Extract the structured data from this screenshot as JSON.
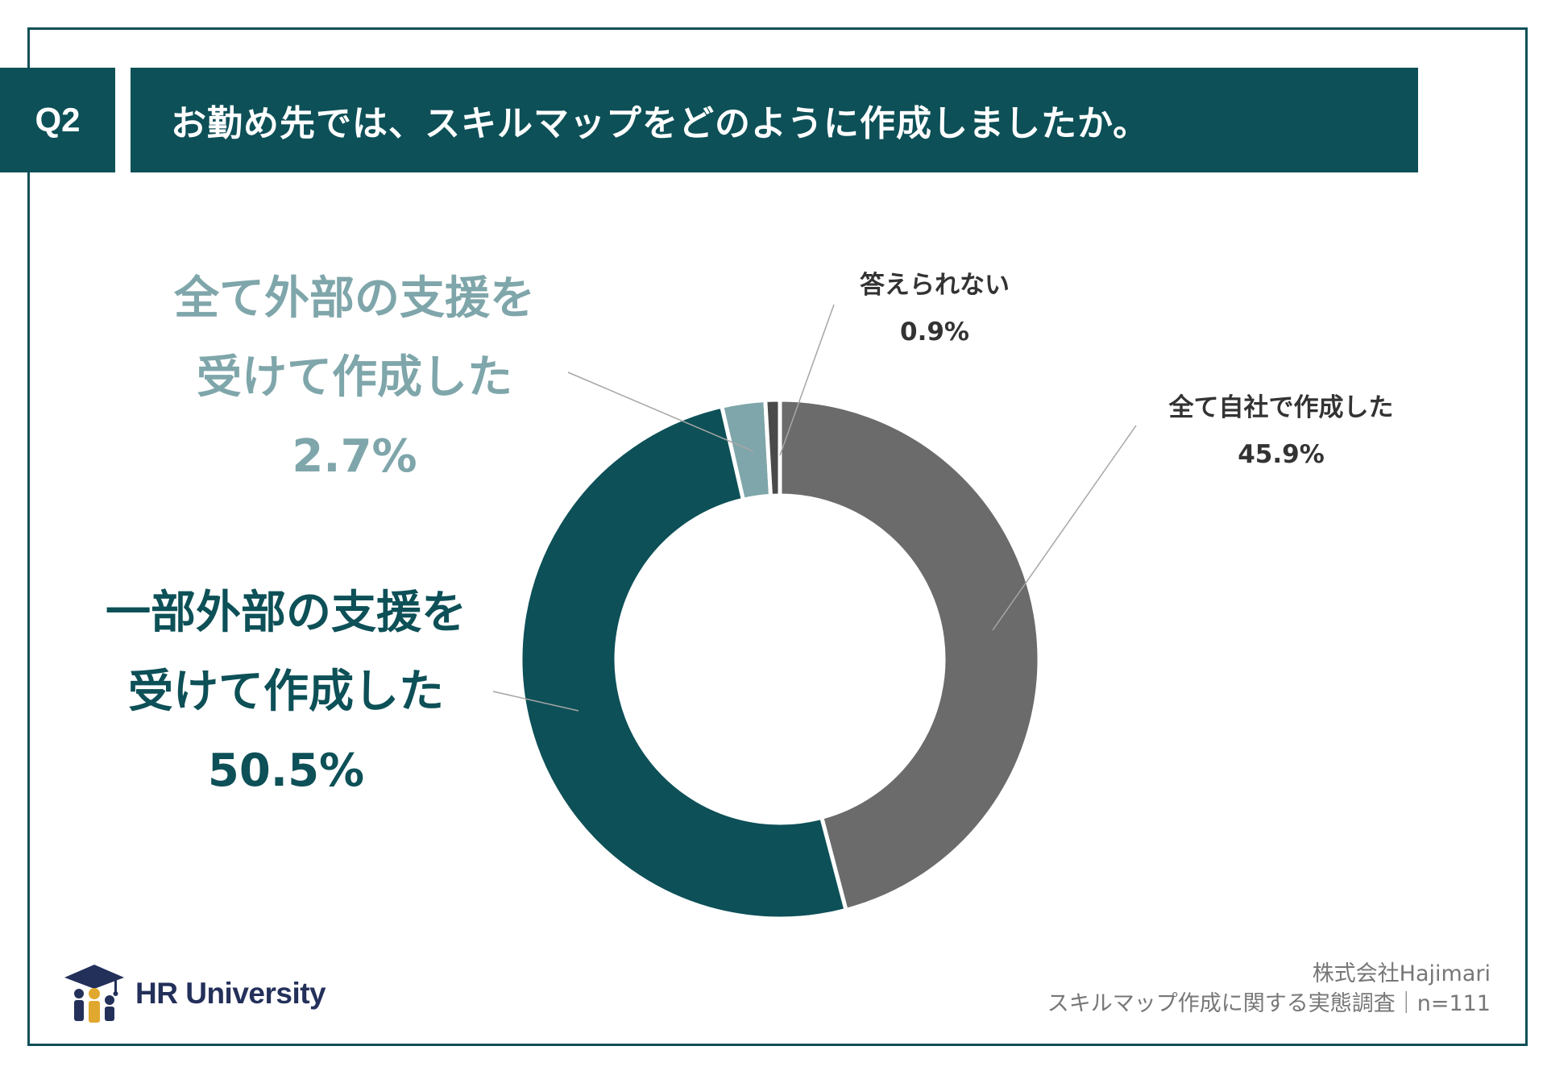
{
  "header": {
    "question_no": "Q2",
    "question": "お勤め先では、スキルマップをどのように作成しましたか。"
  },
  "chart_data": {
    "type": "pie",
    "donut": true,
    "unit": "%",
    "slices": [
      {
        "label": "全て自社で作成した",
        "value": 45.9,
        "display": "45.9%",
        "color": "#6b6b6b"
      },
      {
        "label": "一部外部の支援を受けて作成した",
        "value": 50.5,
        "display": "50.5%",
        "color": "#0d5057"
      },
      {
        "label": "全て外部の支援を受けて作成した",
        "value": 2.7,
        "display": "2.7%",
        "color": "#7fa6aa"
      },
      {
        "label": "答えられない",
        "value": 0.9,
        "display": "0.9%",
        "color": "#4a4a4a"
      }
    ]
  },
  "labels": {
    "external": {
      "line1": "全て外部の支援を",
      "line2": "受けて作成した",
      "pct": "2.7%"
    },
    "partial": {
      "line1": "一部外部の支援を",
      "line2": "受けて作成した",
      "pct": "50.5%"
    },
    "unknown": {
      "line1": "答えられない",
      "pct": "0.9%"
    },
    "inhouse": {
      "line1": "全て自社で作成した",
      "pct": "45.9%"
    }
  },
  "footer": {
    "logo_text": "HR University",
    "logo_icon": "graduation-cap-people-icon",
    "company": "株式会社Hajimari",
    "survey": "スキルマップ作成に関する実態調査｜n=111"
  },
  "colors": {
    "primary": "#0d5057",
    "light": "#7fa6aa",
    "gray": "#6b6b6b",
    "navy": "#23305a",
    "gold": "#e0a82e"
  }
}
